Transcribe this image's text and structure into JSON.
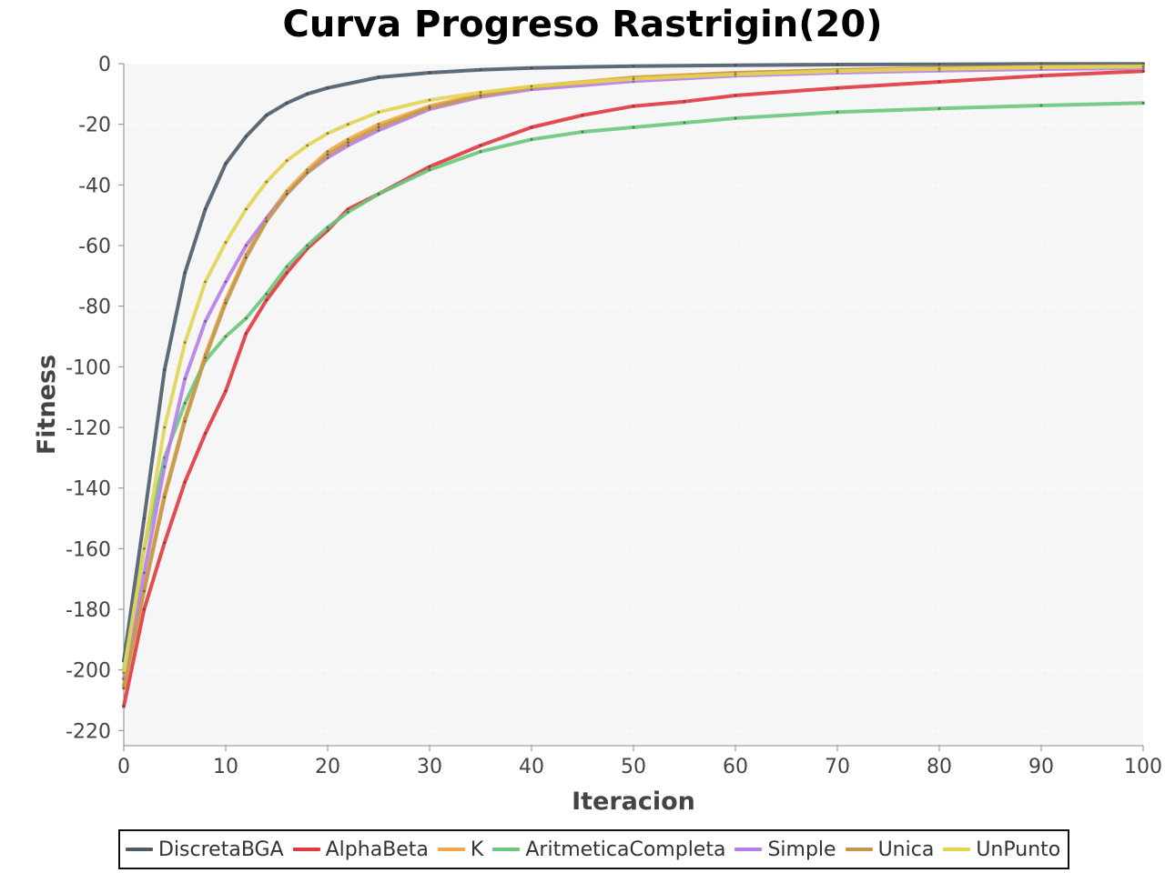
{
  "chart_data": {
    "type": "line",
    "title": "Curva Progreso Rastrigin(20)",
    "xlabel": "Iteracion",
    "ylabel": "Fitness",
    "xlim": [
      0,
      100
    ],
    "ylim": [
      -225,
      0
    ],
    "x_ticks": [
      0,
      10,
      20,
      30,
      40,
      50,
      60,
      70,
      80,
      90,
      100
    ],
    "y_ticks": [
      0,
      -20,
      -40,
      -60,
      -80,
      -100,
      -120,
      -140,
      -160,
      -180,
      -200,
      -220
    ],
    "grid": true,
    "legend_position": "bottom",
    "series": [
      {
        "name": "DiscretaBGA",
        "color": "#4d5b6b",
        "points": [
          [
            0,
            -197
          ],
          [
            2,
            -150
          ],
          [
            4,
            -101
          ],
          [
            6,
            -69
          ],
          [
            8,
            -48
          ],
          [
            10,
            -33
          ],
          [
            12,
            -24
          ],
          [
            14,
            -17
          ],
          [
            16,
            -13
          ],
          [
            18,
            -10
          ],
          [
            20,
            -8
          ],
          [
            25,
            -4.5
          ],
          [
            30,
            -3
          ],
          [
            35,
            -2
          ],
          [
            40,
            -1.4
          ],
          [
            50,
            -0.8
          ],
          [
            60,
            -0.5
          ],
          [
            70,
            -0.3
          ],
          [
            80,
            -0.2
          ],
          [
            90,
            -0.1
          ],
          [
            100,
            -0.1
          ]
        ]
      },
      {
        "name": "AlphaBeta",
        "color": "#e0393e",
        "points": [
          [
            0,
            -212
          ],
          [
            2,
            -180
          ],
          [
            4,
            -158
          ],
          [
            6,
            -138
          ],
          [
            8,
            -122
          ],
          [
            10,
            -108
          ],
          [
            12,
            -89
          ],
          [
            14,
            -78
          ],
          [
            16,
            -69
          ],
          [
            18,
            -61
          ],
          [
            20,
            -55
          ],
          [
            22,
            -48
          ],
          [
            25,
            -43
          ],
          [
            30,
            -34
          ],
          [
            35,
            -27
          ],
          [
            40,
            -21
          ],
          [
            45,
            -17
          ],
          [
            50,
            -14
          ],
          [
            55,
            -12.5
          ],
          [
            60,
            -10.5
          ],
          [
            70,
            -8
          ],
          [
            80,
            -6
          ],
          [
            90,
            -4
          ],
          [
            100,
            -2.5
          ]
        ]
      },
      {
        "name": "K",
        "color": "#f5a742",
        "points": [
          [
            0,
            -205
          ],
          [
            2,
            -173
          ],
          [
            4,
            -142
          ],
          [
            6,
            -117
          ],
          [
            8,
            -96
          ],
          [
            10,
            -78
          ],
          [
            12,
            -63
          ],
          [
            14,
            -51
          ],
          [
            16,
            -42
          ],
          [
            18,
            -35
          ],
          [
            20,
            -29
          ],
          [
            22,
            -25
          ],
          [
            25,
            -20
          ],
          [
            30,
            -14
          ],
          [
            35,
            -10
          ],
          [
            40,
            -7.5
          ],
          [
            50,
            -4.5
          ],
          [
            60,
            -3
          ],
          [
            70,
            -2
          ],
          [
            80,
            -1.4
          ],
          [
            90,
            -1
          ],
          [
            100,
            -0.8
          ]
        ]
      },
      {
        "name": "AritmeticaCompleta",
        "color": "#6cc77c",
        "points": [
          [
            0,
            -200
          ],
          [
            2,
            -160
          ],
          [
            4,
            -130
          ],
          [
            6,
            -112
          ],
          [
            8,
            -98
          ],
          [
            10,
            -90
          ],
          [
            12,
            -84
          ],
          [
            14,
            -76
          ],
          [
            16,
            -67
          ],
          [
            18,
            -60
          ],
          [
            20,
            -54
          ],
          [
            22,
            -49
          ],
          [
            25,
            -43
          ],
          [
            30,
            -35
          ],
          [
            35,
            -29
          ],
          [
            40,
            -25
          ],
          [
            45,
            -22.5
          ],
          [
            50,
            -21
          ],
          [
            55,
            -19.5
          ],
          [
            60,
            -18
          ],
          [
            70,
            -16
          ],
          [
            80,
            -14.8
          ],
          [
            90,
            -13.8
          ],
          [
            100,
            -13
          ]
        ]
      },
      {
        "name": "Simple",
        "color": "#b77ee8",
        "points": [
          [
            0,
            -203
          ],
          [
            2,
            -168
          ],
          [
            4,
            -133
          ],
          [
            6,
            -104
          ],
          [
            8,
            -85
          ],
          [
            10,
            -72
          ],
          [
            12,
            -60
          ],
          [
            14,
            -51
          ],
          [
            16,
            -43
          ],
          [
            18,
            -36
          ],
          [
            20,
            -31
          ],
          [
            22,
            -27
          ],
          [
            25,
            -22
          ],
          [
            30,
            -15
          ],
          [
            35,
            -11
          ],
          [
            40,
            -8.5
          ],
          [
            50,
            -5.8
          ],
          [
            60,
            -4
          ],
          [
            70,
            -3
          ],
          [
            80,
            -2.3
          ],
          [
            90,
            -1.8
          ],
          [
            100,
            -1.5
          ]
        ]
      },
      {
        "name": "Unica",
        "color": "#c29a4e",
        "points": [
          [
            0,
            -206
          ],
          [
            2,
            -174
          ],
          [
            4,
            -143
          ],
          [
            6,
            -118
          ],
          [
            8,
            -97
          ],
          [
            10,
            -79
          ],
          [
            12,
            -64
          ],
          [
            14,
            -52
          ],
          [
            16,
            -43
          ],
          [
            18,
            -36
          ],
          [
            20,
            -30
          ],
          [
            22,
            -26
          ],
          [
            25,
            -21
          ],
          [
            30,
            -14.5
          ],
          [
            35,
            -10.5
          ],
          [
            40,
            -7.8
          ],
          [
            50,
            -4.8
          ],
          [
            60,
            -3.1
          ],
          [
            70,
            -2.1
          ],
          [
            80,
            -1.5
          ],
          [
            90,
            -1.1
          ],
          [
            100,
            -0.9
          ]
        ]
      },
      {
        "name": "UnPunto",
        "color": "#e3d552",
        "points": [
          [
            0,
            -201
          ],
          [
            2,
            -160
          ],
          [
            4,
            -120
          ],
          [
            6,
            -92
          ],
          [
            8,
            -72
          ],
          [
            10,
            -59
          ],
          [
            12,
            -48
          ],
          [
            14,
            -39
          ],
          [
            16,
            -32
          ],
          [
            18,
            -27
          ],
          [
            20,
            -23
          ],
          [
            22,
            -20
          ],
          [
            25,
            -16
          ],
          [
            30,
            -12
          ],
          [
            35,
            -9.5
          ],
          [
            40,
            -7.5
          ],
          [
            50,
            -5
          ],
          [
            60,
            -3.5
          ],
          [
            70,
            -2.5
          ],
          [
            80,
            -1.7
          ],
          [
            90,
            -1.2
          ],
          [
            100,
            -1
          ]
        ]
      }
    ]
  }
}
